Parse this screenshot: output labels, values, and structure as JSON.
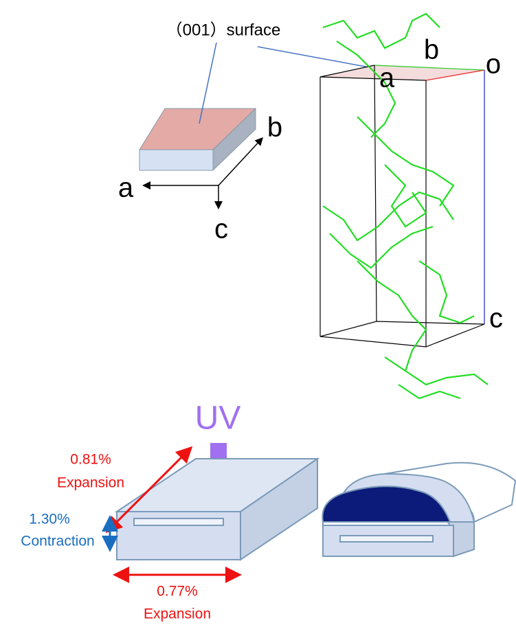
{
  "crystal_axes": {
    "surface_label": "（001）surface",
    "a": "a",
    "b": "b",
    "c": "c"
  },
  "unit_cell": {
    "b": "b",
    "o": "o",
    "a": "a",
    "c": "c"
  },
  "deformation": {
    "stimulus": "UV",
    "length": {
      "percent": "0.81%",
      "effect": "Expansion"
    },
    "thickness": {
      "percent": "1.30%",
      "effect": "Contraction"
    },
    "width": {
      "percent": "0.77%",
      "effect": "Expansion"
    }
  }
}
